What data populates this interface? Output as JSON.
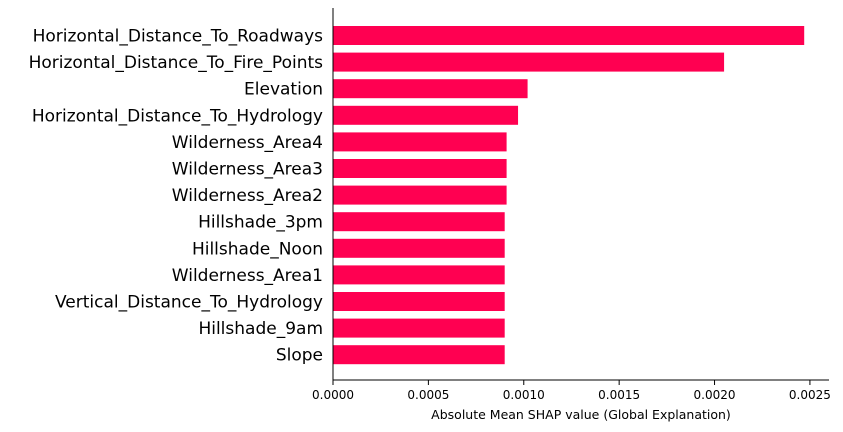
{
  "chart_data": {
    "type": "bar",
    "orientation": "horizontal",
    "title": "",
    "xlabel": "Absolute Mean SHAP value (Global Explanation)",
    "ylabel": "",
    "xlim": [
      0,
      0.0026
    ],
    "x_ticks": [
      {
        "value": 0.0,
        "label": "0.0000"
      },
      {
        "value": 0.0005,
        "label": "0.0005"
      },
      {
        "value": 0.001,
        "label": "0.0010"
      },
      {
        "value": 0.0015,
        "label": "0.0015"
      },
      {
        "value": 0.002,
        "label": "0.0020"
      },
      {
        "value": 0.0025,
        "label": "0.0025"
      }
    ],
    "categories": [
      "Horizontal_Distance_To_Roadways",
      "Horizontal_Distance_To_Fire_Points",
      "Elevation",
      "Horizontal_Distance_To_Hydrology",
      "Wilderness_Area4",
      "Wilderness_Area3",
      "Wilderness_Area2",
      "Hillshade_3pm",
      "Hillshade_Noon",
      "Wilderness_Area1",
      "Vertical_Distance_To_Hydrology",
      "Hillshade_9am",
      "Slope"
    ],
    "values": [
      0.00247,
      0.00205,
      0.00102,
      0.00097,
      0.00091,
      0.00091,
      0.00091,
      0.0009,
      0.0009,
      0.0009,
      0.0009,
      0.0009,
      0.0009
    ],
    "bar_color": "#ff0051",
    "grid": false
  }
}
